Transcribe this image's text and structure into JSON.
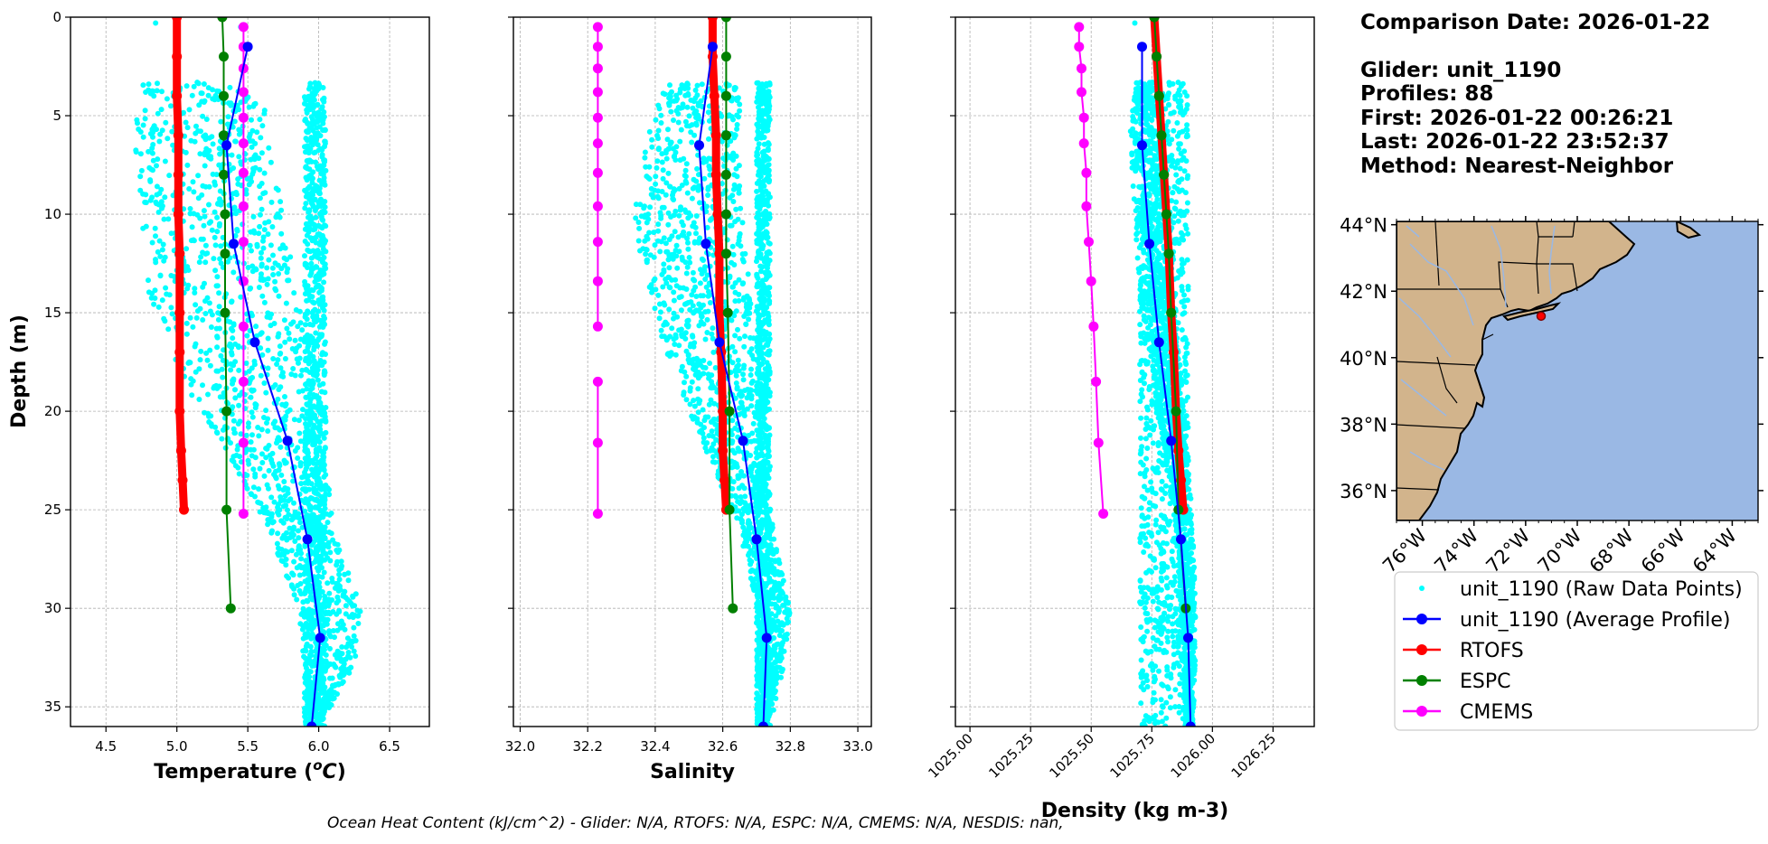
{
  "header": {
    "comparison": "Comparison Date: 2026-01-22",
    "glider": "Glider: unit_1190",
    "profiles": "Profiles: 88",
    "first": "First: 2026-01-22 00:26:21",
    "last": "Last: 2026-01-22 23:52:37",
    "method": "Method: Nearest-Neighbor"
  },
  "footer": {
    "text": "Ocean Heat Content (kJ/cm^2) - Glider: N/A,  RTOFS: N/A,  ESPC: N/A,  CMEMS: N/A,  NESDIS: nan,"
  },
  "colors": {
    "raw": "#00ffff",
    "avg": "#0000ff",
    "rtofs": "#ff0000",
    "espc": "#008000",
    "cmems": "#ff00ff",
    "land": "#d2b48c",
    "ocean": "#9ab8e4"
  },
  "chart_data": [
    {
      "type": "line",
      "xlabel": "Temperature (°C)",
      "ylabel": "Depth (m)",
      "xlim": [
        4.25,
        6.78
      ],
      "ylim": [
        36,
        0
      ],
      "xticks": [
        4.5,
        5.0,
        5.5,
        6.0,
        6.5
      ],
      "xtick_labels": [
        "4.5",
        "5.0",
        "5.5",
        "6.0",
        "6.5"
      ],
      "yticks": [
        0,
        5,
        10,
        15,
        20,
        25,
        30,
        35
      ],
      "grid": true,
      "raw_cloud": [
        {
          "depth": 3.3,
          "min": 4.75,
          "max": 5.6
        },
        {
          "depth": 6,
          "min": 4.7,
          "max": 5.65
        },
        {
          "depth": 10,
          "min": 4.75,
          "max": 5.75
        },
        {
          "depth": 14,
          "min": 4.8,
          "max": 5.85
        },
        {
          "depth": 18,
          "min": 5.0,
          "max": 6.0
        },
        {
          "depth": 22,
          "min": 5.35,
          "max": 6.05
        },
        {
          "depth": 26,
          "min": 5.65,
          "max": 6.1
        },
        {
          "depth": 30,
          "min": 5.85,
          "max": 6.3
        },
        {
          "depth": 33,
          "min": 5.9,
          "max": 6.25
        },
        {
          "depth": 36,
          "min": 5.9,
          "max": 6.0
        }
      ],
      "raw_column": {
        "min": 5.9,
        "max": 6.05,
        "top": 3.3
      },
      "raw_surface": [
        [
          4.85,
          0.3
        ],
        [
          5.45,
          0.5
        ]
      ],
      "series": [
        {
          "name": "unit_1190 (Average Profile)",
          "color": "#0000ff",
          "width": 2,
          "markers": true,
          "x": [
            5.5,
            5.35,
            5.4,
            5.55,
            5.78,
            5.92,
            6.01,
            5.95
          ],
          "y": [
            1.5,
            6.5,
            11.5,
            16.5,
            21.5,
            26.5,
            31.5,
            36
          ]
        },
        {
          "name": "RTOFS",
          "color": "#ff0000",
          "width": 9,
          "markers": true,
          "x": [
            5.0,
            5.0,
            5.0,
            5.01,
            5.01,
            5.01,
            5.02,
            5.02,
            5.02,
            5.02,
            5.03,
            5.04,
            5.05
          ],
          "y": [
            0,
            2,
            4,
            6,
            8,
            10,
            12,
            15,
            17,
            20,
            22,
            23.5,
            25
          ]
        },
        {
          "name": "ESPC",
          "color": "#008000",
          "width": 2,
          "markers": true,
          "x": [
            5.32,
            5.33,
            5.33,
            5.33,
            5.33,
            5.34,
            5.34,
            5.34,
            5.35,
            5.35,
            5.38
          ],
          "y": [
            0,
            2,
            4,
            6,
            8,
            10,
            12,
            15,
            20,
            25,
            30
          ]
        },
        {
          "name": "CMEMS",
          "color": "#ff00ff",
          "width": 2,
          "markers": true,
          "x": [
            5.47,
            5.47,
            5.47,
            5.47,
            5.47,
            5.47,
            5.47,
            5.47,
            5.47,
            5.47,
            5.47,
            5.47,
            5.47,
            5.47
          ],
          "y": [
            0.5,
            1.5,
            2.6,
            3.8,
            5.1,
            6.4,
            7.9,
            9.6,
            11.4,
            13.4,
            15.7,
            18.5,
            21.6,
            25.2
          ]
        }
      ]
    },
    {
      "type": "line",
      "xlabel": "Salinity",
      "ylim": [
        36,
        0
      ],
      "xlim": [
        31.98,
        33.04
      ],
      "xticks": [
        32.0,
        32.2,
        32.4,
        32.6,
        32.8,
        33.0
      ],
      "xtick_labels": [
        "32.0",
        "32.2",
        "32.4",
        "32.6",
        "32.8",
        "33.0"
      ],
      "yticks": [
        0,
        5,
        10,
        15,
        20,
        25,
        30,
        35
      ],
      "grid": true,
      "raw_cloud": [
        {
          "depth": 3.3,
          "min": 32.43,
          "max": 32.65
        },
        {
          "depth": 6,
          "min": 32.38,
          "max": 32.65
        },
        {
          "depth": 10,
          "min": 32.33,
          "max": 32.66
        },
        {
          "depth": 14,
          "min": 32.38,
          "max": 32.68
        },
        {
          "depth": 18,
          "min": 32.45,
          "max": 32.7
        },
        {
          "depth": 22,
          "min": 32.55,
          "max": 32.72
        },
        {
          "depth": 26,
          "min": 32.65,
          "max": 32.75
        },
        {
          "depth": 30,
          "min": 32.7,
          "max": 32.8
        },
        {
          "depth": 33,
          "min": 32.7,
          "max": 32.78
        },
        {
          "depth": 36,
          "min": 32.7,
          "max": 32.74
        }
      ],
      "raw_column": {
        "min": 32.7,
        "max": 32.74,
        "top": 3.3
      },
      "raw_surface": [],
      "series": [
        {
          "name": "unit_1190 (Average Profile)",
          "color": "#0000ff",
          "width": 2,
          "markers": true,
          "x": [
            32.57,
            32.53,
            32.55,
            32.59,
            32.66,
            32.7,
            32.73,
            32.72
          ],
          "y": [
            1.5,
            6.5,
            11.5,
            16.5,
            21.5,
            26.5,
            31.5,
            36
          ]
        },
        {
          "name": "RTOFS",
          "color": "#ff0000",
          "width": 9,
          "markers": true,
          "x": [
            32.57,
            32.57,
            32.575,
            32.58,
            32.58,
            32.585,
            32.59,
            32.59,
            32.595,
            32.6,
            32.6,
            32.605,
            32.61
          ],
          "y": [
            0,
            2,
            4,
            6,
            8,
            10,
            12,
            15,
            17,
            20,
            22,
            23.5,
            25
          ]
        },
        {
          "name": "ESPC",
          "color": "#008000",
          "width": 2,
          "markers": true,
          "x": [
            32.61,
            32.61,
            32.61,
            32.61,
            32.61,
            32.61,
            32.61,
            32.615,
            32.62,
            32.62,
            32.63
          ],
          "y": [
            0,
            2,
            4,
            6,
            8,
            10,
            12,
            15,
            20,
            25,
            30
          ]
        },
        {
          "name": "CMEMS",
          "color": "#ff00ff",
          "width": 2,
          "markers": true,
          "x": [
            32.23,
            32.23,
            32.23,
            32.23,
            32.23,
            32.23,
            32.23,
            32.23,
            32.23,
            32.23,
            32.23
          ],
          "y": [
            0.5,
            1.5,
            2.6,
            3.8,
            5.1,
            6.4,
            7.9,
            9.6,
            11.4,
            13.4,
            15.7
          ]
        },
        {
          "name": "CMEMS-lower",
          "color": "#ff00ff",
          "width": 2,
          "markers": true,
          "hidden_legend": true,
          "x": [
            32.23,
            32.23,
            32.23
          ],
          "y": [
            18.5,
            21.6,
            25.2
          ]
        }
      ]
    },
    {
      "type": "line",
      "xlabel": "Density (kg m-3)",
      "ylim": [
        36,
        0
      ],
      "xlim": [
        1024.94,
        1026.42
      ],
      "xticks": [
        1025.0,
        1025.25,
        1025.5,
        1025.75,
        1026.0,
        1026.25
      ],
      "xtick_labels": [
        "1025.00",
        "1025.25",
        "1025.50",
        "1025.75",
        "1026.00",
        "1026.25"
      ],
      "yticks": [
        0,
        5,
        10,
        15,
        20,
        25,
        30,
        35
      ],
      "grid": true,
      "raw_cloud": [
        {
          "depth": 3.3,
          "min": 1025.68,
          "max": 1025.78
        },
        {
          "depth": 6,
          "min": 1025.66,
          "max": 1025.8
        },
        {
          "depth": 10,
          "min": 1025.68,
          "max": 1025.82
        },
        {
          "depth": 14,
          "min": 1025.7,
          "max": 1025.84
        },
        {
          "depth": 18,
          "min": 1025.75,
          "max": 1025.87
        },
        {
          "depth": 22,
          "min": 1025.8,
          "max": 1025.9
        },
        {
          "depth": 26,
          "min": 1025.85,
          "max": 1025.92
        },
        {
          "depth": 30,
          "min": 1025.87,
          "max": 1025.93
        },
        {
          "depth": 33,
          "min": 1025.88,
          "max": 1025.93
        },
        {
          "depth": 36,
          "min": 1025.89,
          "max": 1025.92
        }
      ],
      "raw_column": {
        "min": 1025.7,
        "max": 1025.9,
        "top": 3.3
      },
      "raw_surface": [
        [
          1025.68,
          0.3
        ]
      ],
      "series": [
        {
          "name": "unit_1190 (Average Profile)",
          "color": "#0000ff",
          "width": 2,
          "markers": true,
          "x": [
            1025.71,
            1025.71,
            1025.74,
            1025.78,
            1025.83,
            1025.87,
            1025.9,
            1025.91
          ],
          "y": [
            1.5,
            6.5,
            11.5,
            16.5,
            21.5,
            26.5,
            31.5,
            36
          ]
        },
        {
          "name": "RTOFS",
          "color": "#ff0000",
          "width": 9,
          "markers": true,
          "x": [
            1025.76,
            1025.77,
            1025.78,
            1025.79,
            1025.8,
            1025.81,
            1025.82,
            1025.83,
            1025.84,
            1025.85,
            1025.86,
            1025.87,
            1025.88
          ],
          "y": [
            0,
            2,
            4,
            6,
            8,
            10,
            12,
            15,
            17,
            20,
            22,
            23.5,
            25
          ]
        },
        {
          "name": "ESPC",
          "color": "#008000",
          "width": 2,
          "markers": true,
          "x": [
            1025.76,
            1025.77,
            1025.78,
            1025.79,
            1025.8,
            1025.81,
            1025.82,
            1025.83,
            1025.85,
            1025.86,
            1025.89
          ],
          "y": [
            0,
            2,
            4,
            6,
            8,
            10,
            12,
            15,
            20,
            25,
            30
          ]
        },
        {
          "name": "CMEMS",
          "color": "#ff00ff",
          "width": 2,
          "markers": true,
          "x": [
            1025.45,
            1025.45,
            1025.46,
            1025.46,
            1025.47,
            1025.47,
            1025.48,
            1025.48,
            1025.49,
            1025.5,
            1025.51,
            1025.52,
            1025.53,
            1025.55
          ],
          "y": [
            0.5,
            1.5,
            2.6,
            3.8,
            5.1,
            6.4,
            7.9,
            9.6,
            11.4,
            13.4,
            15.7,
            18.5,
            21.6,
            25.2
          ]
        }
      ]
    }
  ],
  "map": {
    "lat_ticks": [
      "44°N",
      "42°N",
      "40°N",
      "38°N",
      "36°N"
    ],
    "lat_values": [
      44,
      42,
      40,
      38,
      36
    ],
    "lon_ticks": [
      "76°W",
      "74°W",
      "72°W",
      "70°W",
      "68°W",
      "66°W",
      "64°W"
    ],
    "lon_values": [
      -76,
      -74,
      -72,
      -70,
      -68,
      -66,
      -64
    ],
    "extent": {
      "lon_min": -77,
      "lon_max": -63,
      "lat_min": 35.1,
      "lat_max": 44.1
    },
    "glider_location": {
      "lon": -71.4,
      "lat": 41.25
    }
  },
  "legend": {
    "items": [
      {
        "label": "unit_1190 (Raw Data Points)",
        "kind": "dot",
        "color": "#00ffff"
      },
      {
        "label": "unit_1190 (Average Profile)",
        "kind": "line",
        "color": "#0000ff"
      },
      {
        "label": "RTOFS",
        "kind": "line",
        "color": "#ff0000"
      },
      {
        "label": "ESPC",
        "kind": "line",
        "color": "#008000"
      },
      {
        "label": "CMEMS",
        "kind": "line",
        "color": "#ff00ff"
      }
    ]
  }
}
